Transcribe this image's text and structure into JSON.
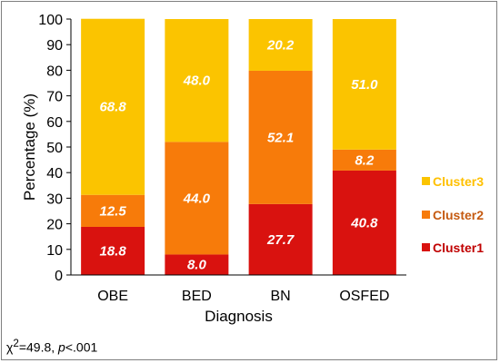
{
  "chart_data": {
    "type": "bar",
    "stacked": true,
    "categories": [
      "OBE",
      "BED",
      "BN",
      "OSFED"
    ],
    "series": [
      {
        "name": "Cluster1",
        "values": [
          18.8,
          8.0,
          27.7,
          40.8
        ],
        "color": "#d9120f"
      },
      {
        "name": "Cluster2",
        "values": [
          12.5,
          44.0,
          52.1,
          8.2
        ],
        "color": "#f77b0a"
      },
      {
        "name": "Cluster3",
        "values": [
          68.8,
          48.0,
          20.2,
          51.0
        ],
        "color": "#fbc400"
      }
    ],
    "ylim": [
      0,
      100
    ],
    "yticks": [
      0,
      10,
      20,
      30,
      40,
      50,
      60,
      70,
      80,
      90,
      100
    ],
    "xlabel": "Diagnosis",
    "ylabel": "Percentage (%)",
    "legend": {
      "position": "right",
      "order": [
        "Cluster3",
        "Cluster2",
        "Cluster1"
      ]
    },
    "label_colors": {
      "Cluster1": "#c00000",
      "Cluster2": "#c55a11",
      "Cluster3": "#ffc000"
    },
    "grid": false
  },
  "footnote": {
    "chi": "χ",
    "sup": "2",
    "stat": "=49.8, ",
    "p": "p",
    "rest": "<.001"
  }
}
